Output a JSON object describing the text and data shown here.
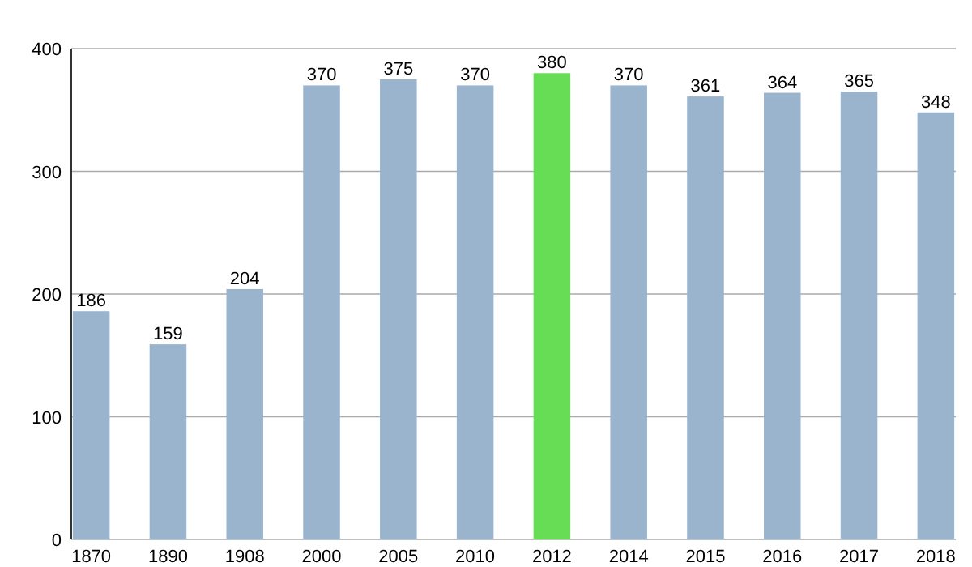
{
  "chart_data": {
    "type": "bar",
    "categories": [
      "1870",
      "1890",
      "1908",
      "2000",
      "2005",
      "2010",
      "2012",
      "2014",
      "2015",
      "2016",
      "2017",
      "2018"
    ],
    "values": [
      186,
      159,
      204,
      370,
      375,
      370,
      380,
      370,
      361,
      364,
      365,
      348
    ],
    "colors": [
      "#9bb4cd",
      "#9bb4cd",
      "#9bb4cd",
      "#9bb4cd",
      "#9bb4cd",
      "#9bb4cd",
      "#66dd55",
      "#9bb4cd",
      "#9bb4cd",
      "#9bb4cd",
      "#9bb4cd",
      "#9bb4cd"
    ],
    "ylim": [
      0,
      400
    ],
    "yticks": [
      0,
      100,
      200,
      300,
      400
    ],
    "grid": "y",
    "data_labels": true
  }
}
